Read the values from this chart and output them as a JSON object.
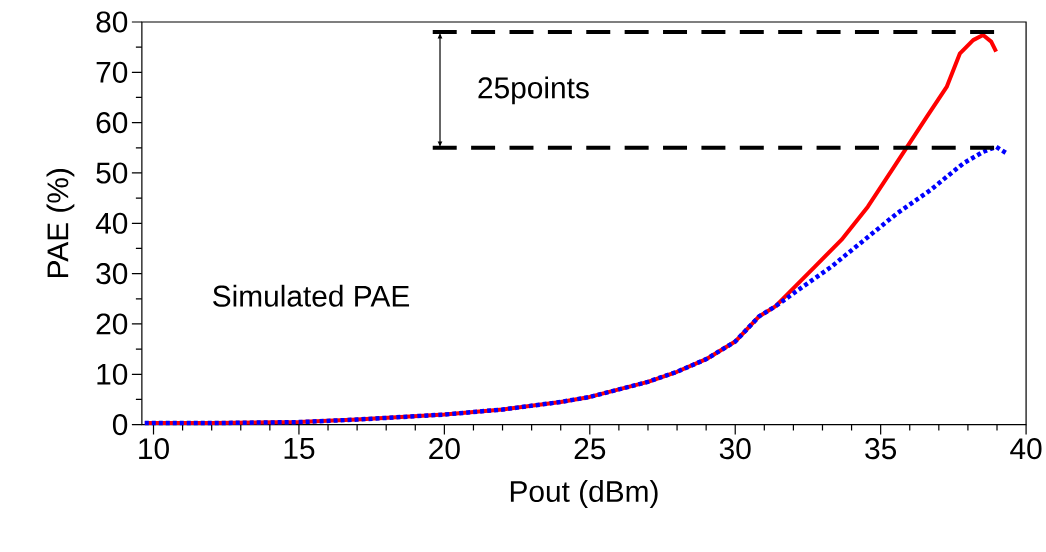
{
  "chart_data": {
    "type": "line",
    "xlabel": "Pout (dBm)",
    "ylabel": "PAE (%)",
    "xlim": [
      9.6,
      40
    ],
    "ylim": [
      0,
      80
    ],
    "xticks": [
      10,
      15,
      20,
      25,
      30,
      35,
      40
    ],
    "yticks": [
      0,
      10,
      20,
      30,
      40,
      50,
      60,
      70,
      80
    ],
    "grid": false,
    "marker": "none",
    "series": [
      {
        "color": "#ff0000",
        "line_style": "solid",
        "x": [
          9.7,
          12,
          15,
          17,
          20,
          22,
          24,
          25,
          26,
          27,
          28,
          29,
          30,
          30.82,
          31.38,
          32.74,
          33.65,
          34.56,
          35.46,
          36.59,
          37.27,
          37.72,
          38.18,
          38.52,
          38.8,
          38.97
        ],
        "values": [
          0.3,
          0.3,
          0.5,
          1,
          2,
          3,
          4.5,
          5.5,
          7,
          8.5,
          10.5,
          13,
          16.5,
          21.5,
          23.5,
          31.4,
          36.7,
          43.3,
          51.2,
          61.2,
          67.1,
          73.7,
          76.4,
          77.4,
          76.1,
          74.1
        ]
      },
      {
        "color": "#0000ff",
        "line_style": "dotted",
        "x": [
          9.7,
          12,
          15,
          17,
          20,
          22,
          24,
          25,
          26,
          27,
          28,
          29,
          30,
          30.82,
          31.38,
          32.18,
          33.31,
          34.44,
          35.57,
          36.71,
          37.84,
          38.52,
          38.97,
          39.36
        ],
        "values": [
          0.3,
          0.3,
          0.5,
          1,
          2,
          3,
          4.5,
          5.5,
          7,
          8.5,
          10.5,
          13,
          16.5,
          21.5,
          23.5,
          26.8,
          31.4,
          36.7,
          42.0,
          46.6,
          51.9,
          54.2,
          55.2,
          53.8
        ]
      },
      {
        "color": "#000000",
        "line_style": "dashed",
        "x": [
          19.6,
          38.9
        ],
        "values": [
          78,
          78
        ]
      },
      {
        "color": "#000000",
        "line_style": "dashed",
        "x": [
          19.6,
          38.9
        ],
        "values": [
          55,
          55
        ]
      }
    ],
    "annotations": [
      "Simulated PAE",
      "25points"
    ]
  }
}
